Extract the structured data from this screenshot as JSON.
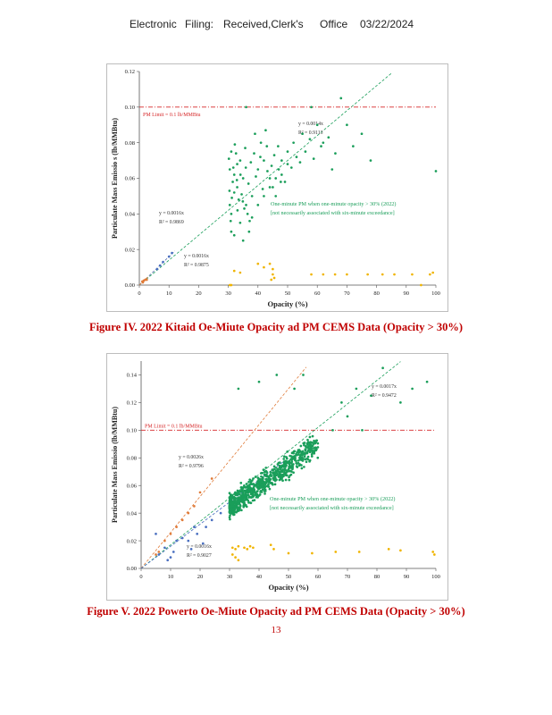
{
  "header": {
    "part1": "Electronic",
    "part2": "Filing:",
    "part3": "Received,Clerk's",
    "part4": "Office",
    "part5": "03/22/2024"
  },
  "figure4": {
    "caption": "Figure IV. 2022 Kitaid Oe-Miute Opacity ad PM CEMS Data (Opacity > 30%)"
  },
  "figure5": {
    "caption": "Figure V. 2022 Powerto Oe-Miute Opacity ad PM CEMS Data (Opacity > 30%)"
  },
  "page_number": "13",
  "chart_data": [
    {
      "type": "scatter",
      "title": "",
      "xlabel": "Opacity (%)",
      "ylabel": "Particulate Mass Emissio    s (lb/MMBtu)",
      "xlim": [
        0,
        100
      ],
      "ylim": [
        0,
        0.12
      ],
      "x_ticks": [
        "0",
        "10",
        "20",
        "30",
        "40",
        "50",
        "60",
        "70",
        "80",
        "90",
        "100"
      ],
      "y_ticks": [
        "0.00",
        "0.02",
        "0.04",
        "0.06",
        "0.08",
        "0.10",
        "0.12"
      ],
      "grid": false,
      "limit_line": {
        "y": 0.1,
        "label": "PM Limit = 0.1 lb/MMBtu",
        "color": "#d62728"
      },
      "trendlines": [
        {
          "slope": 0.0014,
          "color": "#1a9e5a",
          "label1": "y = 0.0014x",
          "label2": "R² = 0.9113",
          "x_range": [
            0,
            85
          ]
        },
        {
          "slope": 0.0016,
          "color": "#5a6fb0",
          "label1": "y = 0.0016x",
          "label2": "R² = 0.9869",
          "x_range": [
            0,
            12
          ]
        },
        {
          "slope": 0.0016,
          "color": "#e07b39",
          "label1": "y = 0.0016x",
          "label2": "R² = 0.9875",
          "x_range": [
            0,
            3
          ]
        }
      ],
      "annotation": "One-minute PM when one-minute opacity > 30% (2022)",
      "annotation2": "[not necessarily associated with six-minute exceedance]",
      "series": [
        {
          "color": "#1a9e5a",
          "points": [
            [
              31,
              0.075
            ],
            [
              33,
              0.068
            ],
            [
              32,
              0.062
            ],
            [
              34,
              0.07
            ],
            [
              30.5,
              0.045
            ],
            [
              31,
              0.04
            ],
            [
              32,
              0.052
            ],
            [
              33,
              0.055
            ],
            [
              35,
              0.06
            ],
            [
              36,
              0.045
            ],
            [
              34,
              0.035
            ],
            [
              31,
              0.03
            ],
            [
              32,
              0.028
            ],
            [
              35,
              0.025
            ],
            [
              37,
              0.03
            ],
            [
              38,
              0.05
            ],
            [
              40,
              0.065
            ],
            [
              42,
              0.07
            ],
            [
              44,
              0.06
            ],
            [
              45,
              0.055
            ],
            [
              46,
              0.05
            ],
            [
              47,
              0.065
            ],
            [
              48,
              0.07
            ],
            [
              50,
              0.075
            ],
            [
              52,
              0.08
            ],
            [
              55,
              0.085
            ],
            [
              58,
              0.1
            ],
            [
              60,
              0.09
            ],
            [
              62,
              0.08
            ],
            [
              65,
              0.065
            ],
            [
              68,
              0.105
            ],
            [
              70,
              0.09
            ],
            [
              75,
              0.085
            ],
            [
              78,
              0.07
            ],
            [
              100,
              0.064
            ],
            [
              36,
              0.1
            ],
            [
              39,
              0.085
            ],
            [
              41,
              0.08
            ],
            [
              43,
              0.078
            ],
            [
              30.5,
              0.065
            ],
            [
              31.5,
              0.058
            ],
            [
              33.5,
              0.048
            ],
            [
              36.5,
              0.04
            ],
            [
              38,
              0.038
            ],
            [
              40,
              0.045
            ],
            [
              42,
              0.05
            ],
            [
              44,
              0.055
            ],
            [
              46,
              0.06
            ],
            [
              48,
              0.062
            ],
            [
              50,
              0.068
            ],
            [
              53,
              0.072
            ],
            [
              56,
              0.075
            ],
            [
              30.2,
              0.071
            ],
            [
              31.7,
              0.066
            ],
            [
              32.6,
              0.074
            ],
            [
              34.5,
              0.051
            ],
            [
              35.4,
              0.043
            ],
            [
              36.8,
              0.057
            ],
            [
              37.6,
              0.069
            ],
            [
              39.3,
              0.061
            ],
            [
              41.6,
              0.054
            ],
            [
              43.2,
              0.064
            ],
            [
              45.5,
              0.073
            ],
            [
              49.1,
              0.058
            ],
            [
              51.3,
              0.066
            ],
            [
              54.2,
              0.069
            ],
            [
              57.5,
              0.082
            ],
            [
              61.3,
              0.078
            ],
            [
              63.8,
              0.083
            ],
            [
              66.1,
              0.074
            ],
            [
              30.8,
              0.036
            ],
            [
              33.1,
              0.042
            ],
            [
              34.9,
              0.047
            ],
            [
              37.2,
              0.036
            ],
            [
              32.2,
              0.079
            ],
            [
              35.7,
              0.077
            ],
            [
              40.8,
              0.072
            ],
            [
              44.6,
              0.067
            ],
            [
              47.7,
              0.058
            ],
            [
              30.4,
              0.053
            ],
            [
              31.2,
              0.049
            ],
            [
              32.9,
              0.059
            ],
            [
              34.1,
              0.062
            ],
            [
              35.9,
              0.066
            ],
            [
              38.7,
              0.074
            ],
            [
              42.6,
              0.087
            ],
            [
              46.8,
              0.078
            ],
            [
              58.8,
              0.071
            ],
            [
              72.1,
              0.078
            ]
          ]
        },
        {
          "color": "#f0b400",
          "points": [
            [
              32,
              0.008
            ],
            [
              34,
              0.007
            ],
            [
              40,
              0.012
            ],
            [
              42,
              0.01
            ],
            [
              44,
              0.012
            ],
            [
              45,
              0.009
            ],
            [
              45,
              0.006
            ],
            [
              44.5,
              0.003
            ],
            [
              45.5,
              0.004
            ],
            [
              58,
              0.006
            ],
            [
              62,
              0.006
            ],
            [
              66,
              0.006
            ],
            [
              70,
              0.006
            ],
            [
              77,
              0.006
            ],
            [
              82,
              0.006
            ],
            [
              86,
              0.006
            ],
            [
              92,
              0.006
            ],
            [
              98,
              0.006
            ],
            [
              99,
              0.007
            ],
            [
              95,
              0.0
            ],
            [
              30.5,
              0.0
            ],
            [
              31,
              0.0
            ]
          ]
        },
        {
          "color": "#4a6fc0",
          "points": [
            [
              6,
              0.009
            ],
            [
              7,
              0.011
            ],
            [
              10,
              0.016
            ],
            [
              11,
              0.018
            ],
            [
              8,
              0.013
            ]
          ]
        },
        {
          "color": "#e07b39",
          "points": [
            [
              1,
              0.002
            ],
            [
              1.5,
              0.0025
            ],
            [
              2,
              0.003
            ],
            [
              2.5,
              0.003
            ],
            [
              1.2,
              0.0015
            ]
          ]
        }
      ]
    },
    {
      "type": "scatter",
      "title": "",
      "xlabel": "Opacity (%)",
      "ylabel": "Particulate Mass Emissio    (lb/MMBtu)",
      "xlim": [
        0,
        100
      ],
      "ylim": [
        0,
        0.15
      ],
      "x_ticks": [
        "0",
        "10",
        "20",
        "30",
        "40",
        "50",
        "60",
        "70",
        "80",
        "90",
        "100"
      ],
      "y_ticks": [
        "0.00",
        "0.02",
        "0.04",
        "0.06",
        "0.08",
        "0.10",
        "0.12",
        "0.14"
      ],
      "grid": false,
      "limit_line": {
        "y": 0.1,
        "label": "PM Limit = 0.1 lb/MMBtu",
        "color": "#d62728"
      },
      "trendlines": [
        {
          "slope": 0.0017,
          "color": "#1a9e5a",
          "label1": "y = 0.0017x",
          "label2": "R² = 0.9472",
          "x_range": [
            0,
            88
          ]
        },
        {
          "slope": 0.0026,
          "color": "#e07b39",
          "label1": "y = 0.0026x",
          "label2": "R² = 0.9796",
          "x_range": [
            0,
            56
          ]
        },
        {
          "slope": 0.0016,
          "color": "#4a6fc0",
          "label1": "y = 0.0016x",
          "label2": "R² = 0.9027",
          "x_range": [
            0,
            48
          ]
        }
      ],
      "annotation": "One-minute    PM when one-minute       opacity > 30% (2022)",
      "annotation2": "[not necessarily    associated with six-minute       exceedance]",
      "series": [
        {
          "color": "#1a9e5a",
          "cloud": {
            "n": 750,
            "x_min": 30,
            "x_max": 60,
            "slope": 0.0015,
            "spread": 0.012
          },
          "points": [
            [
              92,
              0.13
            ],
            [
              97,
              0.135
            ],
            [
              82,
              0.145
            ],
            [
              73,
              0.13
            ],
            [
              68,
              0.12
            ],
            [
              55,
              0.14
            ],
            [
              52,
              0.13
            ],
            [
              46,
              0.14
            ],
            [
              40,
              0.135
            ],
            [
              33,
              0.13
            ],
            [
              78,
              0.125
            ],
            [
              88,
              0.12
            ],
            [
              70,
              0.11
            ],
            [
              65,
              0.1
            ],
            [
              75,
              0.1
            ]
          ]
        },
        {
          "color": "#f0b400",
          "points": [
            [
              31,
              0.015
            ],
            [
              32,
              0.014
            ],
            [
              33,
              0.016
            ],
            [
              35,
              0.015
            ],
            [
              36,
              0.014
            ],
            [
              37,
              0.016
            ],
            [
              38,
              0.015
            ],
            [
              44,
              0.017
            ],
            [
              45,
              0.014
            ],
            [
              31,
              0.01
            ],
            [
              32,
              0.008
            ],
            [
              33,
              0.006
            ],
            [
              50,
              0.011
            ],
            [
              58,
              0.011
            ],
            [
              66,
              0.012
            ],
            [
              74,
              0.012
            ],
            [
              84,
              0.014
            ],
            [
              88,
              0.013
            ],
            [
              99,
              0.012
            ],
            [
              99.5,
              0.01
            ]
          ]
        },
        {
          "color": "#4a6fc0",
          "points": [
            [
              5,
              0.025
            ],
            [
              6,
              0.01
            ],
            [
              8,
              0.015
            ],
            [
              9,
              0.006
            ],
            [
              10,
              0.008
            ],
            [
              12,
              0.02
            ],
            [
              14,
              0.022
            ],
            [
              16,
              0.02
            ],
            [
              18,
              0.03
            ],
            [
              19,
              0.025
            ],
            [
              22,
              0.03
            ],
            [
              24,
              0.035
            ],
            [
              27,
              0.04
            ],
            [
              21,
              0.018
            ],
            [
              11,
              0.012
            ],
            [
              17,
              0.014
            ]
          ]
        },
        {
          "color": "#e07b39",
          "points": [
            [
              5,
              0.01
            ],
            [
              8,
              0.02
            ],
            [
              10,
              0.025
            ],
            [
              14,
              0.035
            ],
            [
              16,
              0.04
            ],
            [
              18,
              0.045
            ],
            [
              20,
              0.055
            ],
            [
              24,
              0.065
            ],
            [
              12,
              0.03
            ],
            [
              6,
              0.012
            ]
          ]
        }
      ]
    }
  ]
}
